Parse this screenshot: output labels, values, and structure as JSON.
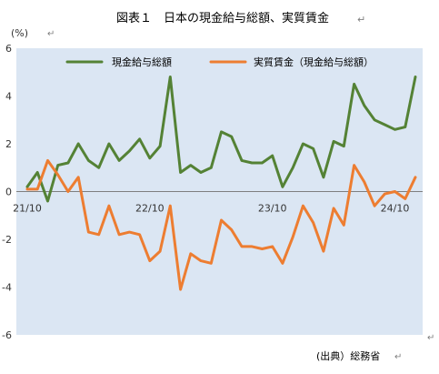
{
  "chart_data": {
    "type": "line",
    "title": "図表１　日本の現金給与総額、実質賃金",
    "ylabel": "(%)",
    "source": "(出典）総務省",
    "ylim": [
      -6,
      6
    ],
    "yticks": [
      6,
      4,
      2,
      0,
      -2,
      -4,
      -6
    ],
    "xticks": [
      {
        "index": 0,
        "label": "21/10"
      },
      {
        "index": 12,
        "label": "22/10"
      },
      {
        "index": 24,
        "label": "23/10"
      },
      {
        "index": 36,
        "label": "24/10"
      }
    ],
    "legend_position": "top",
    "grid": false,
    "series": [
      {
        "name": "現金給与総額",
        "color": "#548235",
        "values": [
          0.2,
          0.8,
          -0.4,
          1.1,
          1.2,
          2.0,
          1.3,
          1.0,
          2.0,
          1.3,
          1.7,
          2.2,
          1.4,
          1.9,
          4.8,
          0.8,
          1.1,
          0.8,
          1.0,
          2.5,
          2.3,
          1.3,
          1.2,
          1.2,
          1.5,
          0.2,
          1.0,
          2.0,
          1.8,
          0.6,
          2.1,
          1.9,
          4.5,
          3.6,
          3.0,
          2.8,
          2.6,
          2.7,
          4.8
        ]
      },
      {
        "name": "実質賃金（現金給与総額）",
        "color": "#ed7d31",
        "values": [
          0.1,
          0.1,
          1.3,
          0.7,
          0.0,
          0.6,
          -1.7,
          -1.8,
          -0.6,
          -1.8,
          -1.7,
          -1.8,
          -2.9,
          -2.5,
          -0.6,
          -4.1,
          -2.6,
          -2.9,
          -3.0,
          -1.2,
          -1.6,
          -2.3,
          -2.3,
          -2.4,
          -2.3,
          -3.0,
          -1.9,
          -0.6,
          -1.3,
          -2.5,
          -0.7,
          -1.4,
          1.1,
          0.4,
          -0.6,
          -0.1,
          0.0,
          -0.3,
          0.6
        ]
      }
    ]
  }
}
